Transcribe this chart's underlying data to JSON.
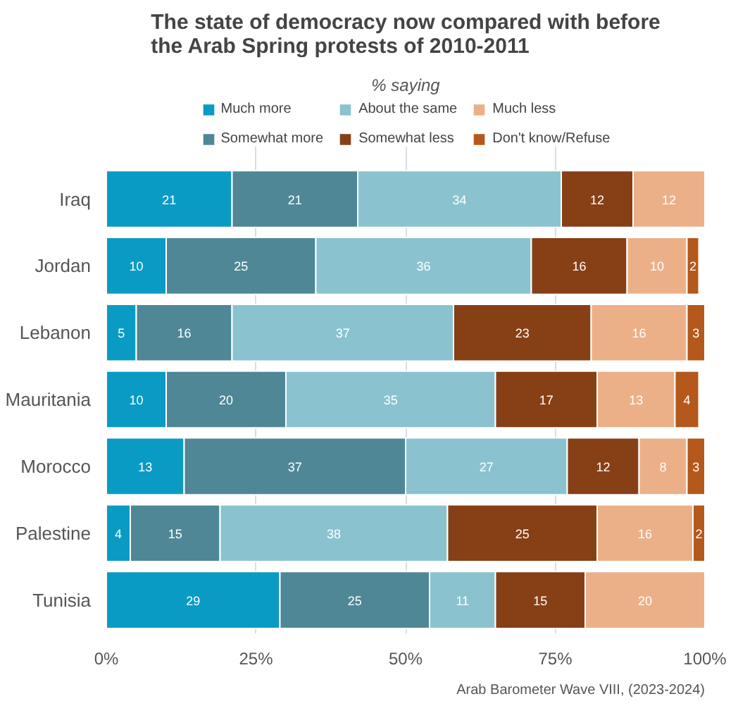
{
  "chart_data": {
    "type": "bar",
    "orientation": "horizontal",
    "stacked": true,
    "title": "The state of democracy now compared with before\nthe Arab Spring protests of 2010-2011",
    "subtitle": "% saying",
    "categories": [
      "Iraq",
      "Jordan",
      "Lebanon",
      "Mauritania",
      "Morocco",
      "Palestine",
      "Tunisia"
    ],
    "series": [
      {
        "name": "Much more",
        "color": "#0a9bc4",
        "values": [
          21,
          10,
          5,
          10,
          13,
          4,
          29
        ]
      },
      {
        "name": "Somewhat more",
        "color": "#4f8797",
        "values": [
          21,
          25,
          16,
          20,
          37,
          15,
          25
        ]
      },
      {
        "name": "About the same",
        "color": "#8ac3cf",
        "values": [
          34,
          36,
          37,
          35,
          27,
          38,
          11
        ]
      },
      {
        "name": "Somewhat less",
        "color": "#873f16",
        "values": [
          12,
          16,
          23,
          17,
          12,
          25,
          15
        ]
      },
      {
        "name": "Much less",
        "color": "#ecb088",
        "values": [
          12,
          10,
          16,
          13,
          8,
          16,
          20
        ]
      },
      {
        "name": "Don't know/Refuse",
        "color": "#b4581b",
        "values": [
          null,
          2,
          3,
          4,
          3,
          2,
          null
        ]
      }
    ],
    "xlim": [
      0,
      100
    ],
    "xticks": [
      {
        "value": 0,
        "label": "0%"
      },
      {
        "value": 25,
        "label": "25%"
      },
      {
        "value": 50,
        "label": "50%"
      },
      {
        "value": 75,
        "label": "75%"
      },
      {
        "value": 100,
        "label": "100%"
      }
    ],
    "grid": "x",
    "legend": "top",
    "data_labels": true,
    "annotations": [
      "Arab Barometer Wave VIII, (2023-2024)"
    ]
  }
}
